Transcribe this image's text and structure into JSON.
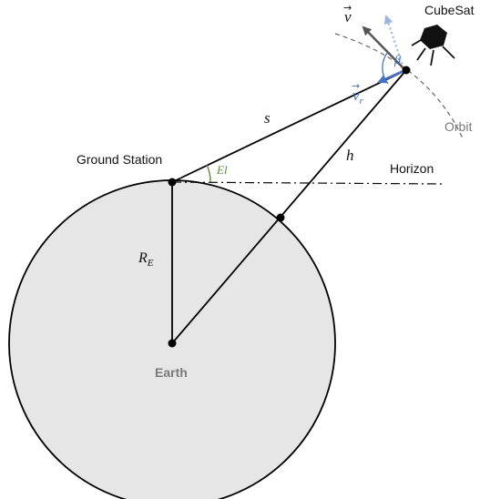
{
  "labels": {
    "cubesat": "CubeSat",
    "orbit": "Orbit",
    "horizon": "Horizon",
    "ground_station": "Ground Station",
    "earth": "Earth",
    "slant_range": "s",
    "altitude": "h",
    "earth_radius": "R",
    "earth_radius_sub": "E",
    "elevation": "El",
    "beta": "β",
    "velocity": "v",
    "radial_velocity": "v",
    "radial_velocity_sub": "r",
    "vector_arrow": "→"
  },
  "colors": {
    "earth_fill": "#e6e6e6",
    "line": "#000000",
    "orbit": "#666666",
    "elevation": "#5a8a3a",
    "radial_velocity": "#4472c4",
    "projection": "#9bb7e0",
    "velocity": "#555555"
  },
  "icons": {
    "satellite": "cubesat-icon"
  }
}
